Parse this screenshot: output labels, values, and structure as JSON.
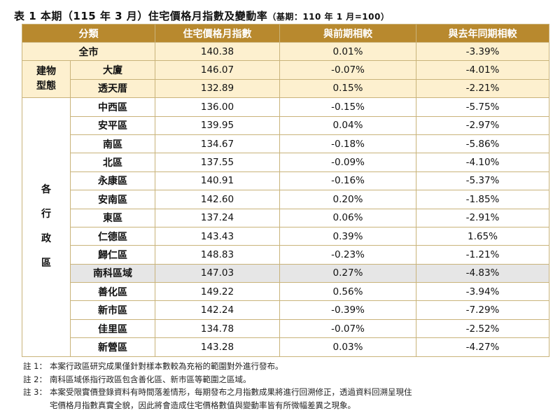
{
  "title": {
    "main": "表 1 本期（115 年 3 月）住宅價格月指數及變動率",
    "base": "（基期：110 年 1 月=100）"
  },
  "headers": [
    "分類",
    "住宅價格月指數",
    "與前期相較",
    "與去年同期相較"
  ],
  "overall": {
    "name": "全市",
    "index": "140.38",
    "mom": "0.01%",
    "yoy": "-3.39%"
  },
  "building_group": {
    "label_line1": "建物",
    "label_line2": "型態",
    "rows": [
      {
        "name": "大廈",
        "index": "146.07",
        "mom": "-0.07%",
        "yoy": "-4.01%"
      },
      {
        "name": "透天厝",
        "index": "132.89",
        "mom": "0.15%",
        "yoy": "-2.21%"
      }
    ]
  },
  "district_group": {
    "label_chars": [
      "各",
      "行",
      "政",
      "區"
    ],
    "rows": [
      {
        "name": "中西區",
        "index": "136.00",
        "mom": "-0.15%",
        "yoy": "-5.75%"
      },
      {
        "name": "安平區",
        "index": "139.95",
        "mom": "0.04%",
        "yoy": "-2.97%"
      },
      {
        "name": "南區",
        "index": "134.67",
        "mom": "-0.18%",
        "yoy": "-5.86%"
      },
      {
        "name": "北區",
        "index": "137.55",
        "mom": "-0.09%",
        "yoy": "-4.10%"
      },
      {
        "name": "永康區",
        "index": "140.91",
        "mom": "-0.16%",
        "yoy": "-5.37%"
      },
      {
        "name": "安南區",
        "index": "142.60",
        "mom": "0.20%",
        "yoy": "-1.85%"
      },
      {
        "name": "東區",
        "index": "137.24",
        "mom": "0.06%",
        "yoy": "-2.91%"
      },
      {
        "name": "仁德區",
        "index": "143.43",
        "mom": "0.39%",
        "yoy": "1.65%"
      },
      {
        "name": "歸仁區",
        "index": "148.83",
        "mom": "-0.23%",
        "yoy": "-1.21%"
      },
      {
        "name": "南科區域",
        "index": "147.03",
        "mom": "0.27%",
        "yoy": "-4.83%",
        "highlight": true
      },
      {
        "name": "善化區",
        "index": "149.22",
        "mom": "0.56%",
        "yoy": "-3.94%"
      },
      {
        "name": "新市區",
        "index": "142.24",
        "mom": "-0.39%",
        "yoy": "-7.29%"
      },
      {
        "name": "佳里區",
        "index": "134.78",
        "mom": "-0.07%",
        "yoy": "-2.52%"
      },
      {
        "name": "新營區",
        "index": "143.28",
        "mom": "0.03%",
        "yoy": "-4.27%"
      }
    ]
  },
  "notes": [
    {
      "key": "註 1：",
      "lines": [
        "本案行政區研究成果僅針對樣本數較為充裕的範圍對外進行發布。"
      ]
    },
    {
      "key": "註 2：",
      "lines": [
        "南科區域係指行政區包含善化區、新市區等範圍之區域。"
      ]
    },
    {
      "key": "註 3：",
      "lines": [
        "本案受限實價登錄資料有時間落差情形，每期發布之月指數成果將進行回溯修正，透過資料回溯呈現住",
        "宅價格月指數真實全貌，因此將會造成住宅價格數值與變動率皆有所微幅差異之現象。"
      ]
    }
  ]
}
